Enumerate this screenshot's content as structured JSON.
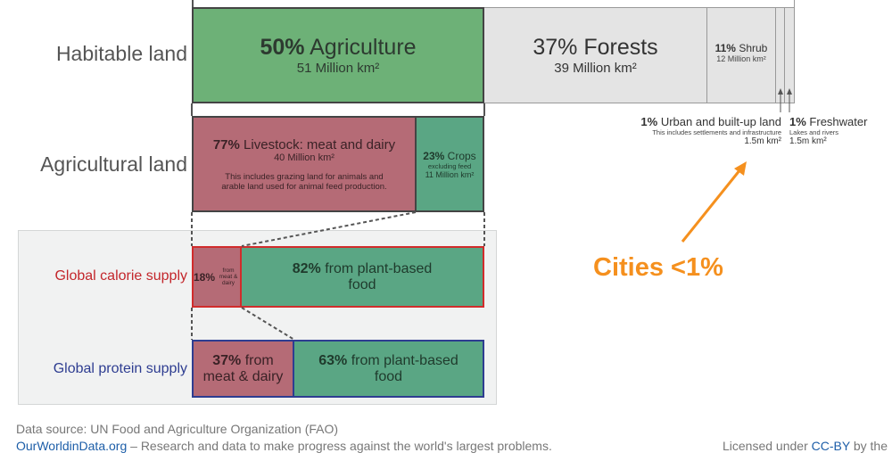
{
  "row_labels": {
    "habitable": "Habitable land",
    "agricultural": "Agricultural land",
    "calorie": "Global calorie supply",
    "protein": "Global protein supply"
  },
  "habitable": {
    "agriculture": {
      "pct": "50%",
      "label": "Agriculture",
      "area": "51 Million km²"
    },
    "forests": {
      "pct": "37%",
      "label": "Forests",
      "area": "39 Million km²"
    },
    "shrub": {
      "pct": "11%",
      "label": "Shrub",
      "area": "12 Million km²"
    },
    "urban": {
      "pct": "1%",
      "label": "Urban and built-up land",
      "note": "This includes settlements and infrastructure",
      "area": "1.5m km²"
    },
    "freshwater": {
      "pct": "1%",
      "label": "Freshwater",
      "note": "Lakes and rivers",
      "area": "1.5m km²"
    }
  },
  "agricultural": {
    "livestock": {
      "pct": "77%",
      "label": "Livestock: meat and dairy",
      "area": "40 Million km²",
      "note1": "This includes grazing land for animals and",
      "note2": "arable land used for animal feed production."
    },
    "crops": {
      "pct": "23%",
      "label": "Crops",
      "note": "excluding feed",
      "area": "11 Million km²"
    }
  },
  "calorie": {
    "meat": {
      "pct": "18%",
      "l1": "from",
      "l2": "meat & dairy"
    },
    "plant": {
      "pct": "82%",
      "l1": "from plant-based",
      "l2": "food"
    }
  },
  "protein": {
    "meat": {
      "pct": "37%",
      "l1": "from",
      "l2": "meat & dairy"
    },
    "plant": {
      "pct": "63%",
      "l1": "from plant-based",
      "l2": "food"
    }
  },
  "annotation": {
    "text": "Cities <1%",
    "color": "#f5901e"
  },
  "footer": {
    "source": "Data source: UN Food and Agriculture Organization (FAO)",
    "site": "OurWorldinData.org",
    "tagline": " – Research and data to make progress against the world's largest problems.",
    "license_prefix": "Licensed under ",
    "license_link": "CC-BY",
    "license_suffix": " by the"
  },
  "colors": {
    "agriculture": "#6db177",
    "forests": "#e4e4e4",
    "livestock": "#b56b76",
    "plant": "#5aa684",
    "calorie_border": "#d12c2c",
    "protein_border": "#2e3d91"
  }
}
